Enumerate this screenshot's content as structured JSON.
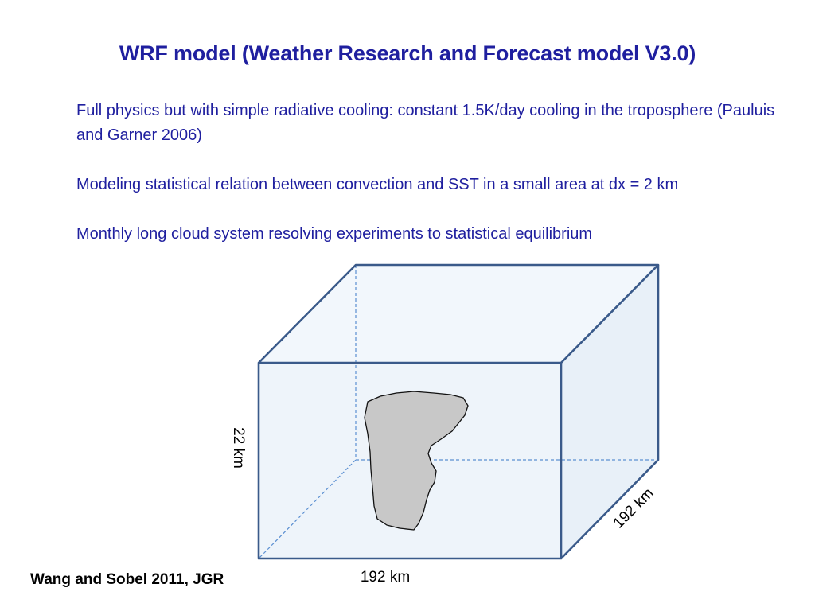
{
  "slide": {
    "title": "WRF model (Weather Research and Forecast model V3.0)",
    "paragraphs": [
      "Full physics but with simple radiative cooling:  constant 1.5K/day cooling in the troposphere (Pauluis and Garner 2006)",
      "Modeling statistical relation between convection and SST in a small area at dx = 2 km",
      "Monthly long cloud system resolving experiments to statistical equilibrium"
    ],
    "citation": "Wang and Sobel 2011, JGR"
  },
  "diagram": {
    "labels": {
      "height": "22 km",
      "width": "192 km",
      "depth": "192 km"
    },
    "colors": {
      "edge": "#3a5a8a",
      "face": "#eef4fa",
      "hidden_edge": "#5b8fd1",
      "cloud_fill": "#c8c8c8",
      "text": "#1f1f9f"
    }
  }
}
